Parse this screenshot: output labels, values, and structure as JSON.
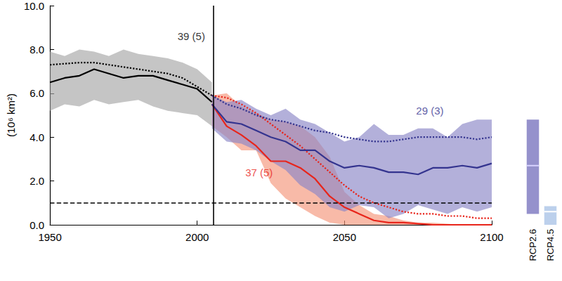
{
  "chart_data": [
    {
      "type": "line",
      "y_label": "(10⁶ km²)",
      "xlim": [
        1950,
        2100
      ],
      "xticks": [
        1950,
        2000,
        2050,
        2100
      ],
      "ylim": [
        0,
        10
      ],
      "yticks": [
        {
          "value": 0,
          "label": "0.0"
        },
        {
          "value": 2,
          "label": "2.0"
        },
        {
          "value": 4,
          "label": "4.0"
        },
        {
          "value": 6,
          "label": "6.0"
        },
        {
          "value": 8,
          "label": "8.0"
        },
        {
          "value": 10,
          "label": "10.0"
        }
      ],
      "grid": false,
      "series": [
        {
          "type": "band",
          "color": "#a6a6a6",
          "x": [
            1950,
            1955,
            1960,
            1965,
            1970,
            1975,
            1980,
            1985,
            1990,
            1995,
            2000,
            2005
          ],
          "lower": [
            5.2,
            5.5,
            5.4,
            5.7,
            5.5,
            5.6,
            5.7,
            5.4,
            5.2,
            5.1,
            5.0,
            4.5
          ],
          "upper": [
            7.9,
            7.7,
            8.0,
            7.9,
            7.7,
            8.0,
            7.8,
            7.7,
            7.6,
            7.4,
            7.1,
            6.5
          ]
        },
        {
          "type": "band",
          "color": "#f4957a",
          "x": [
            2005,
            2010,
            2015,
            2020,
            2025,
            2030,
            2035,
            2040,
            2045,
            2050,
            2055,
            2060,
            2065,
            2070,
            2075,
            2080,
            2085,
            2090,
            2095,
            2100
          ],
          "lower": [
            4.5,
            4.0,
            3.4,
            3.4,
            1.9,
            1.2,
            0.8,
            0.4,
            0.1,
            0,
            0,
            0,
            0,
            0,
            0,
            0,
            0,
            0,
            0,
            0
          ],
          "upper": [
            5.9,
            6.0,
            5.4,
            5.1,
            4.8,
            4.7,
            4.5,
            4.0,
            3.1,
            1.5,
            0.9,
            0.5,
            0.4,
            0.2,
            0.1,
            0.1,
            0.05,
            0,
            0,
            0
          ]
        },
        {
          "type": "band",
          "color": "#8a85c6",
          "x": [
            2005,
            2010,
            2015,
            2020,
            2025,
            2030,
            2035,
            2040,
            2045,
            2050,
            2055,
            2060,
            2065,
            2070,
            2075,
            2080,
            2085,
            2090,
            2095,
            2100
          ],
          "lower": [
            4.4,
            3.8,
            3.7,
            3.4,
            2.9,
            2.5,
            1.8,
            1.4,
            0.8,
            0.6,
            0.9,
            0.8,
            0.3,
            0.5,
            0.9,
            0.7,
            0.5,
            0.8,
            0.6,
            0.8
          ],
          "upper": [
            5.9,
            5.6,
            5.7,
            5.3,
            5.0,
            5.3,
            4.8,
            4.6,
            4.2,
            3.8,
            4.0,
            4.6,
            4.1,
            4.1,
            4.4,
            4.4,
            4.0,
            4.6,
            4.8,
            4.8
          ]
        },
        {
          "type": "line",
          "color": "#000000",
          "line_style": "dotted",
          "x": [
            1950,
            1955,
            1960,
            1965,
            1970,
            1975,
            1980,
            1985,
            1990,
            1995,
            2000,
            2005
          ],
          "values": [
            7.3,
            7.35,
            7.4,
            7.4,
            7.3,
            7.2,
            7.1,
            7.0,
            6.9,
            6.7,
            6.3,
            5.9
          ]
        },
        {
          "type": "line",
          "color": "#000000",
          "line_style": "solid",
          "x": [
            1950,
            1955,
            1960,
            1965,
            1970,
            1975,
            1980,
            1985,
            1990,
            1995,
            2000,
            2005
          ],
          "values": [
            6.5,
            6.7,
            6.8,
            7.1,
            6.9,
            6.7,
            6.8,
            6.8,
            6.6,
            6.4,
            6.2,
            5.6
          ]
        },
        {
          "type": "line",
          "color": "#e8251b",
          "line_style": "dotted",
          "x": [
            2005,
            2010,
            2015,
            2020,
            2025,
            2030,
            2035,
            2040,
            2045,
            2050,
            2055,
            2060,
            2065,
            2070,
            2075,
            2080,
            2085,
            2090,
            2095,
            2100
          ],
          "values": [
            5.9,
            5.8,
            5.5,
            5.1,
            4.6,
            4.1,
            3.6,
            3.0,
            2.4,
            1.8,
            1.3,
            1.0,
            0.8,
            0.6,
            0.5,
            0.5,
            0.4,
            0.4,
            0.3,
            0.3
          ]
        },
        {
          "type": "line",
          "color": "#e8251b",
          "line_style": "solid",
          "x": [
            2005,
            2010,
            2015,
            2020,
            2025,
            2030,
            2035,
            2040,
            2045,
            2050,
            2055,
            2060,
            2065,
            2070,
            2075,
            2080,
            2085,
            2090,
            2095,
            2100
          ],
          "values": [
            5.5,
            4.5,
            4.1,
            3.6,
            2.9,
            2.9,
            2.6,
            2.1,
            1.3,
            0.8,
            0.5,
            0.2,
            0.1,
            0.1,
            0.05,
            0,
            0,
            0,
            0,
            0
          ]
        },
        {
          "type": "line",
          "color": "#34348f",
          "line_style": "dotted",
          "x": [
            2005,
            2010,
            2015,
            2020,
            2025,
            2030,
            2035,
            2040,
            2045,
            2050,
            2055,
            2060,
            2065,
            2070,
            2075,
            2080,
            2085,
            2090,
            2095,
            2100
          ],
          "values": [
            5.9,
            5.5,
            5.3,
            5.0,
            4.8,
            4.7,
            4.5,
            4.3,
            4.2,
            4.0,
            3.9,
            3.8,
            3.8,
            3.9,
            4.0,
            4.0,
            4.0,
            4.0,
            3.9,
            4.0
          ]
        },
        {
          "type": "line",
          "color": "#34348f",
          "line_style": "solid",
          "x": [
            2005,
            2010,
            2015,
            2020,
            2025,
            2030,
            2035,
            2040,
            2045,
            2050,
            2055,
            2060,
            2065,
            2070,
            2075,
            2080,
            2085,
            2090,
            2095,
            2100
          ],
          "values": [
            5.5,
            4.7,
            4.6,
            4.3,
            4.0,
            3.8,
            3.4,
            3.4,
            2.9,
            2.6,
            2.7,
            2.6,
            2.4,
            2.4,
            2.3,
            2.6,
            2.6,
            2.7,
            2.6,
            2.8
          ]
        }
      ],
      "reference_lines": [
        {
          "x": 2005.5,
          "color": "#000000",
          "line_style": "solid"
        },
        {
          "y": 1,
          "color": "#000000",
          "line_style": "dashed"
        }
      ],
      "annotations": [
        {
          "text": "39 (5)",
          "x": 1998,
          "y": 8.6,
          "color": "#000000"
        },
        {
          "text": "29 (3)",
          "x": 2079,
          "y": 5.2,
          "color": "#34348f"
        },
        {
          "text": "37 (5)",
          "x": 2021,
          "y": 2.4,
          "color": "#e8251b"
        }
      ]
    },
    {
      "type": "range",
      "categories": [
        "RCP2.6",
        "RCP4.5"
      ],
      "lower": [
        0.5,
        0
      ],
      "upper": [
        4.8,
        0.85
      ],
      "values": [
        2.7,
        0.6
      ],
      "colors": [
        "#9591cc",
        "#bcd0ec"
      ],
      "tick_labels": "x"
    }
  ]
}
